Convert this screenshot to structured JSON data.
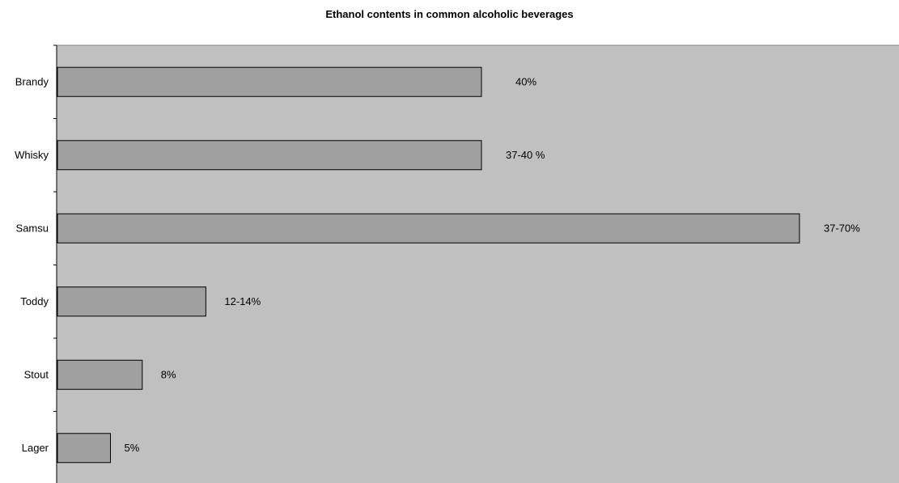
{
  "chart_data": {
    "type": "bar",
    "orientation": "horizontal",
    "title": "Ethanol contents in common alcoholic beverages",
    "xlabel": "",
    "ylabel": "",
    "categories": [
      "Brandy",
      "Whisky",
      "Samsu",
      "Toddy",
      "Stout",
      "Lager"
    ],
    "values": [
      40,
      40,
      70,
      14,
      8,
      5
    ],
    "data_labels": [
      "40%",
      "37-40 %",
      "37-70%",
      "12-14%",
      "8%",
      "5%"
    ],
    "xlim": [
      0,
      80
    ],
    "grid": false,
    "legend": "none"
  },
  "colors": {
    "plot_background": "#c0c0c0",
    "bar_fill": "#a0a0a0",
    "bar_stroke": "#000000"
  }
}
